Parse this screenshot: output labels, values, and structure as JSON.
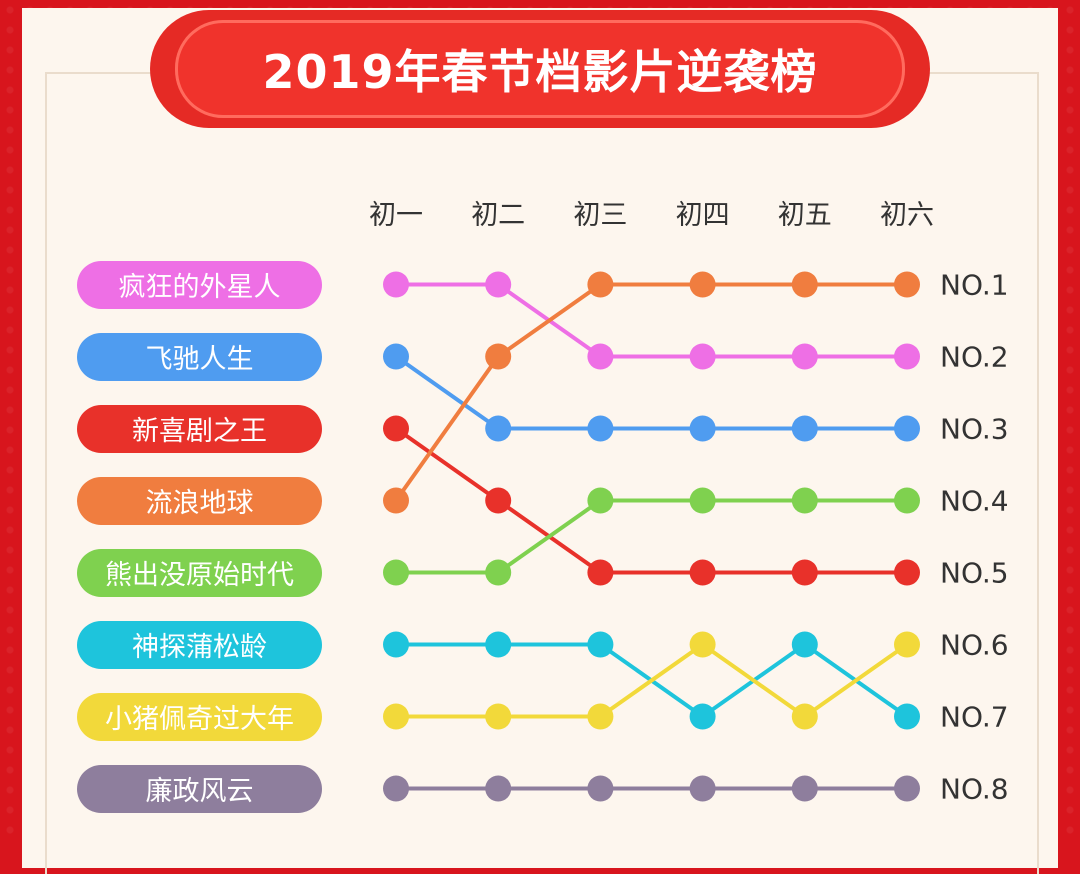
{
  "chart_data": {
    "type": "line",
    "title": "2019年春节档影片逆袭榜",
    "categories": [
      "初一",
      "初二",
      "初三",
      "初四",
      "初五",
      "初六"
    ],
    "rank_labels": [
      "NO.1",
      "NO.2",
      "NO.3",
      "NO.4",
      "NO.5",
      "NO.6",
      "NO.7",
      "NO.8"
    ],
    "y_axis": "rank (1 = top)",
    "series": [
      {
        "name": "疯狂的外星人",
        "color": "#ee6fe5",
        "values": [
          1,
          1,
          2,
          2,
          2,
          2
        ]
      },
      {
        "name": "飞驰人生",
        "color": "#4f9cf0",
        "values": [
          2,
          3,
          3,
          3,
          3,
          3
        ]
      },
      {
        "name": "新喜剧之王",
        "color": "#e8312a",
        "values": [
          3,
          4,
          5,
          5,
          5,
          5
        ]
      },
      {
        "name": "流浪地球",
        "color": "#f07d3f",
        "values": [
          4,
          2,
          1,
          1,
          1,
          1
        ]
      },
      {
        "name": "熊出没原始时代",
        "color": "#7fd14f",
        "values": [
          5,
          5,
          4,
          4,
          4,
          4
        ]
      },
      {
        "name": "神探蒲松龄",
        "color": "#1ec4dc",
        "values": [
          6,
          6,
          6,
          7,
          6,
          7
        ]
      },
      {
        "name": "小猪佩奇过大年",
        "color": "#f2d93a",
        "values": [
          7,
          7,
          7,
          6,
          7,
          6
        ]
      },
      {
        "name": "廉政风云",
        "color": "#8e7e9d",
        "values": [
          8,
          8,
          8,
          8,
          8,
          8
        ]
      }
    ]
  }
}
